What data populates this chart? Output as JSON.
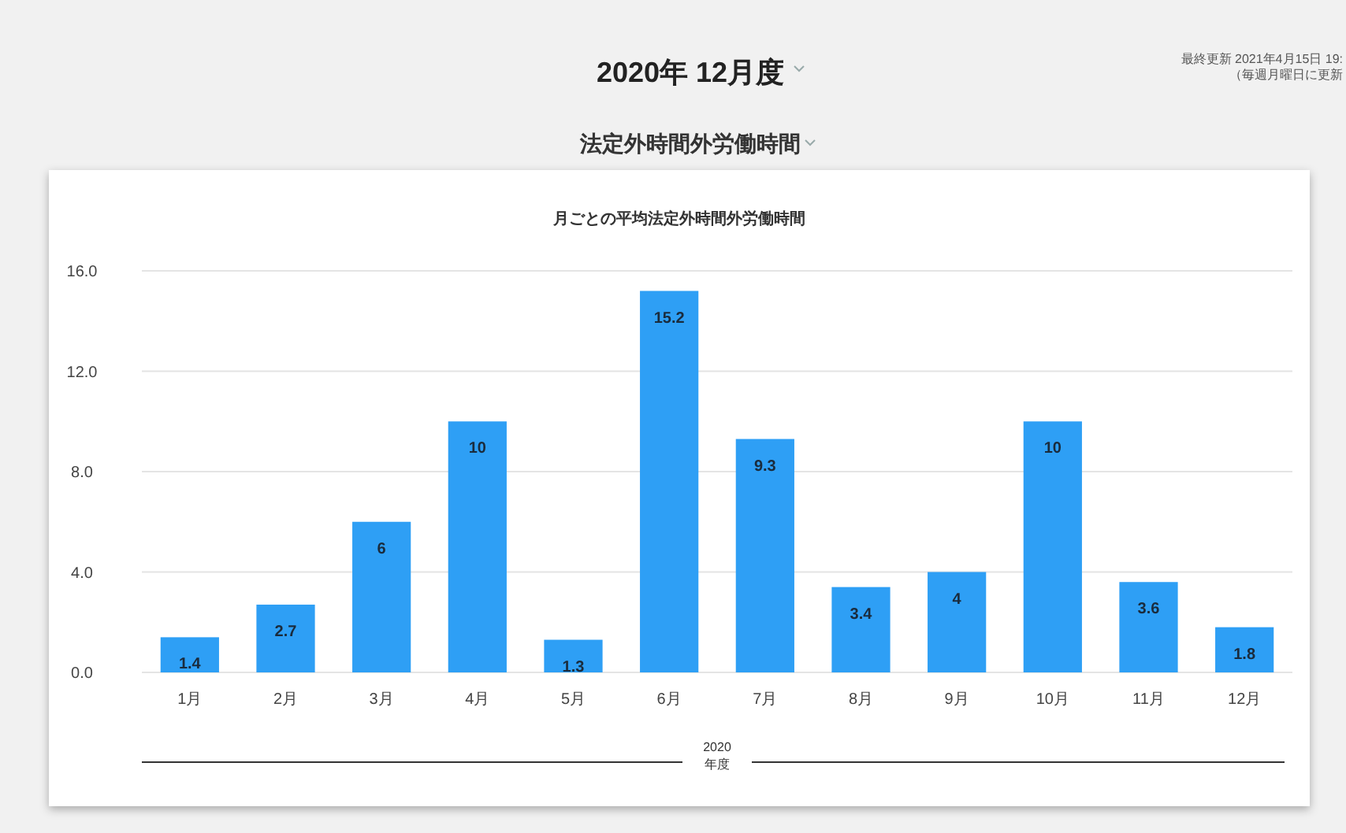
{
  "chart_data": {
    "type": "bar",
    "title": "2020年 12月度",
    "subtitle": "法定外時間外労働時間",
    "annotations": [
      "月ごとの平均法定外時間外労働時間",
      "最終更新 2021年4月15日 19:",
      "（毎週月曜日に更新"
    ],
    "xlabel": "2020 年度",
    "categories": [
      "1月",
      "2月",
      "3月",
      "4月",
      "5月",
      "6月",
      "7月",
      "8月",
      "9月",
      "10月",
      "11月",
      "12月"
    ],
    "values": [
      1.4,
      2.7,
      6,
      10,
      1.3,
      15.2,
      9.3,
      3.4,
      4,
      10,
      3.6,
      1.8
    ],
    "color": "#2e9ff5",
    "ylim": [
      0,
      16
    ],
    "yticks": [
      {
        "value": 0,
        "label": "0.0"
      },
      {
        "value": 4,
        "label": "4.0"
      },
      {
        "value": 8,
        "label": "8.0"
      },
      {
        "value": 12,
        "label": "12.0"
      },
      {
        "value": 16,
        "label": "16.0"
      }
    ],
    "grid": "y",
    "data_labels": true
  }
}
